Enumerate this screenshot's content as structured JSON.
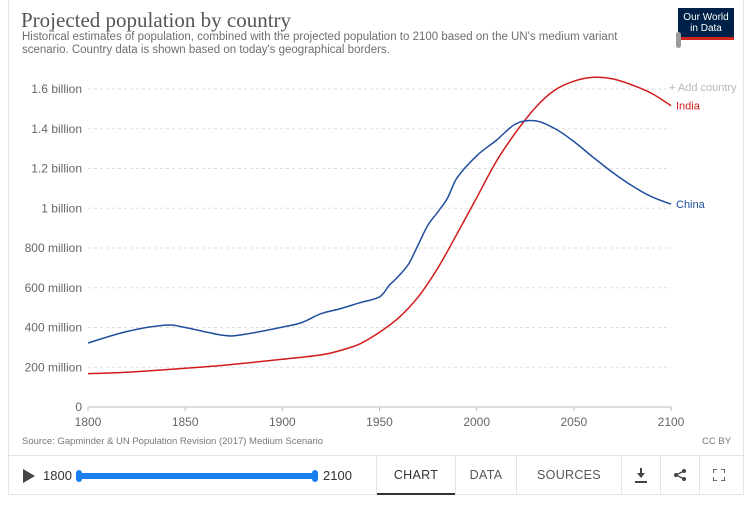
{
  "header": {
    "title": "Projected population by country",
    "subtitle": "Historical estimates of population, combined with the projected population to 2100 based on the UN's medium variant scenario. Country data is shown based on today's geographical borders.",
    "logo_line1": "Our World",
    "logo_line2": "in Data",
    "add_country": "+ Add country"
  },
  "chart_data": {
    "type": "line",
    "title": "Projected population by country",
    "xlabel": "",
    "ylabel": "",
    "xlim": [
      1800,
      2100
    ],
    "ylim": [
      0,
      1600000000
    ],
    "x_ticks": [
      1800,
      1850,
      1900,
      1950,
      2000,
      2050,
      2100
    ],
    "x_tick_labels": [
      "1800",
      "1850",
      "1900",
      "1950",
      "2000",
      "2050",
      "2100"
    ],
    "y_ticks": [
      0,
      200000000,
      400000000,
      600000000,
      800000000,
      1000000000,
      1200000000,
      1400000000,
      1600000000
    ],
    "y_tick_labels": [
      "0",
      "200 million",
      "400 million",
      "600 million",
      "800 million",
      "1 billion",
      "1.2 billion",
      "1.4 billion",
      "1.6 billion"
    ],
    "grid": "horizontal dashed",
    "legend": "inline labels at line ends",
    "series": [
      {
        "name": "India",
        "color": "#d21a1a",
        "x": [
          1800,
          1820,
          1850,
          1870,
          1900,
          1920,
          1930,
          1940,
          1950,
          1960,
          1970,
          1980,
          1990,
          2000,
          2010,
          2020,
          2030,
          2040,
          2050,
          2060,
          2070,
          2080,
          2090,
          2100
        ],
        "y": [
          168000000,
          175000000,
          195000000,
          210000000,
          240000000,
          262000000,
          285000000,
          318000000,
          376000000,
          450000000,
          555000000,
          699000000,
          873000000,
          1053000000,
          1234000000,
          1380000000,
          1504000000,
          1593000000,
          1639000000,
          1659000000,
          1651000000,
          1620000000,
          1578000000,
          1516000000
        ]
      },
      {
        "name": "China",
        "color": "#1f4e9c",
        "x": [
          1800,
          1820,
          1840,
          1850,
          1870,
          1880,
          1900,
          1910,
          1920,
          1930,
          1940,
          1950,
          1955,
          1960,
          1965,
          1970,
          1975,
          1980,
          1985,
          1990,
          2000,
          2010,
          2020,
          2030,
          2040,
          2050,
          2060,
          2070,
          2080,
          2090,
          2100
        ],
        "y": [
          322000000,
          380000000,
          412000000,
          400000000,
          360000000,
          365000000,
          402000000,
          425000000,
          470000000,
          495000000,
          525000000,
          554000000,
          612000000,
          660000000,
          720000000,
          818000000,
          916000000,
          981000000,
          1051000000,
          1154000000,
          1264000000,
          1341000000,
          1424000000,
          1440000000,
          1402000000,
          1336000000,
          1256000000,
          1180000000,
          1113000000,
          1058000000,
          1021000000
        ]
      }
    ]
  },
  "footer": {
    "source": "Source: Gapminder & UN Population Revision (2017) Medium Scenario",
    "license": "CC BY",
    "year_start": "1800",
    "year_end": "2100",
    "tabs": [
      "CHART",
      "DATA",
      "SOURCES"
    ],
    "active_tab": "CHART"
  }
}
